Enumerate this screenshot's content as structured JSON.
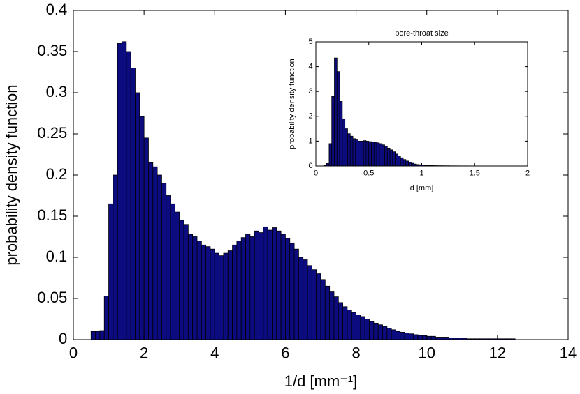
{
  "chart_data": [
    {
      "type": "histogram",
      "xlabel": "1/d [mm⁻¹]",
      "ylabel": "probability density function",
      "color": "#0c0c80",
      "edgecolor": "#000000",
      "bins": [
        0.5,
        0.625,
        0.75,
        0.875,
        1,
        1.125,
        1.25,
        1.375,
        1.5,
        1.625,
        1.75,
        1.875,
        2,
        2.125,
        2.25,
        2.375,
        2.5,
        2.625,
        2.75,
        2.875,
        3,
        3.125,
        3.25,
        3.375,
        3.5,
        3.625,
        3.75,
        3.875,
        4,
        4.125,
        4.25,
        4.375,
        4.5,
        4.625,
        4.75,
        4.875,
        5,
        5.125,
        5.25,
        5.375,
        5.5,
        5.625,
        5.75,
        5.875,
        6,
        6.125,
        6.25,
        6.375,
        6.5,
        6.625,
        6.75,
        6.875,
        7,
        7.125,
        7.25,
        7.375,
        7.5,
        7.625,
        7.75,
        7.875,
        8,
        8.125,
        8.25,
        8.375,
        8.5,
        8.625,
        8.75,
        8.875,
        9,
        9.125,
        9.25,
        9.375,
        9.5,
        9.625,
        9.75,
        9.875,
        10,
        10.125,
        10.25,
        10.375,
        10.5,
        10.625,
        10.75,
        10.875,
        11,
        11.125,
        11.25,
        11.375,
        11.5,
        11.625,
        11.75,
        11.875,
        12,
        12.125,
        12.25,
        12.375,
        12.5,
        12.625,
        12.75,
        12.875,
        13
      ],
      "values": [
        0.01,
        0.01,
        0.011,
        0.053,
        0.165,
        0.2,
        0.36,
        0.362,
        0.35,
        0.33,
        0.3,
        0.271,
        0.245,
        0.215,
        0.21,
        0.2,
        0.19,
        0.175,
        0.165,
        0.155,
        0.145,
        0.14,
        0.128,
        0.125,
        0.12,
        0.115,
        0.113,
        0.11,
        0.105,
        0.102,
        0.105,
        0.108,
        0.115,
        0.12,
        0.124,
        0.128,
        0.125,
        0.132,
        0.13,
        0.137,
        0.133,
        0.136,
        0.132,
        0.128,
        0.123,
        0.117,
        0.11,
        0.1,
        0.097,
        0.09,
        0.085,
        0.08,
        0.073,
        0.065,
        0.058,
        0.052,
        0.045,
        0.04,
        0.036,
        0.033,
        0.03,
        0.028,
        0.025,
        0.022,
        0.02,
        0.018,
        0.016,
        0.014,
        0.012,
        0.01,
        0.009,
        0.008,
        0.007,
        0.006,
        0.005,
        0.005,
        0.004,
        0.004,
        0.003,
        0.003,
        0.003,
        0.002,
        0.002,
        0.002,
        0.002,
        0.001,
        0.001,
        0.001,
        0.001,
        0.001,
        0.001,
        0.001,
        0.001,
        0.001,
        0.001,
        0.001,
        0,
        0,
        0,
        0
      ],
      "xlim": [
        0,
        14
      ],
      "xticks": [
        0,
        2,
        4,
        6,
        8,
        10,
        12,
        14
      ],
      "ylim": [
        0,
        0.4
      ],
      "yticks": [
        0,
        0.05,
        0.1,
        0.15,
        0.2,
        0.25,
        0.3,
        0.35,
        0.4
      ]
    },
    {
      "type": "histogram",
      "title": "pore-throat size",
      "xlabel": "d [mm]",
      "ylabel": "probability density function",
      "color": "#0c0c80",
      "edgecolor": "#000000",
      "bins": [
        0.075,
        0.1,
        0.125,
        0.15,
        0.175,
        0.2,
        0.225,
        0.25,
        0.275,
        0.3,
        0.325,
        0.35,
        0.375,
        0.4,
        0.425,
        0.45,
        0.475,
        0.5,
        0.525,
        0.55,
        0.575,
        0.6,
        0.625,
        0.65,
        0.675,
        0.7,
        0.725,
        0.75,
        0.775,
        0.8,
        0.825,
        0.85,
        0.875,
        0.9,
        0.925,
        0.95,
        0.975,
        1,
        1.025,
        1.05,
        1.075,
        1.1,
        1.125,
        1.15,
        1.175,
        1.2,
        1.225,
        1.25,
        1.275,
        1.3,
        1.325,
        1.35,
        1.375,
        1.4,
        1.425,
        1.45,
        1.475,
        1.5,
        1.525,
        1.55,
        1.575,
        1.6,
        1.625,
        1.65,
        1.675,
        1.7,
        1.725,
        1.75,
        1.775,
        1.8,
        1.825,
        1.85,
        1.875,
        1.9,
        1.925,
        1.95
      ],
      "values": [
        0.02,
        0.1,
        0.9,
        2.8,
        4.35,
        3.8,
        2.6,
        1.9,
        1.5,
        1.3,
        1.2,
        1.1,
        1.05,
        1.0,
        1.0,
        1.02,
        1.0,
        0.98,
        0.97,
        0.95,
        0.93,
        0.9,
        0.85,
        0.8,
        0.72,
        0.65,
        0.57,
        0.48,
        0.4,
        0.33,
        0.26,
        0.2,
        0.15,
        0.11,
        0.08,
        0.06,
        0.05,
        0.04,
        0.03,
        0.025,
        0.02,
        0.015,
        0.013,
        0.011,
        0.01,
        0.009,
        0.008,
        0.007,
        0.006,
        0.006,
        0.005,
        0.005,
        0.004,
        0.004,
        0.004,
        0.003,
        0.003,
        0.003,
        0.003,
        0.002,
        0.002,
        0.002,
        0.002,
        0.002,
        0.002,
        0.001,
        0.001,
        0.001,
        0.001,
        0.001,
        0.001,
        0.001,
        0.001,
        0.001,
        0.001
      ],
      "xlim": [
        0,
        2
      ],
      "xticks": [
        0,
        0.5,
        1,
        1.5,
        2
      ],
      "ylim": [
        0,
        5
      ],
      "yticks": [
        0,
        1,
        2,
        3,
        4,
        5
      ]
    }
  ]
}
